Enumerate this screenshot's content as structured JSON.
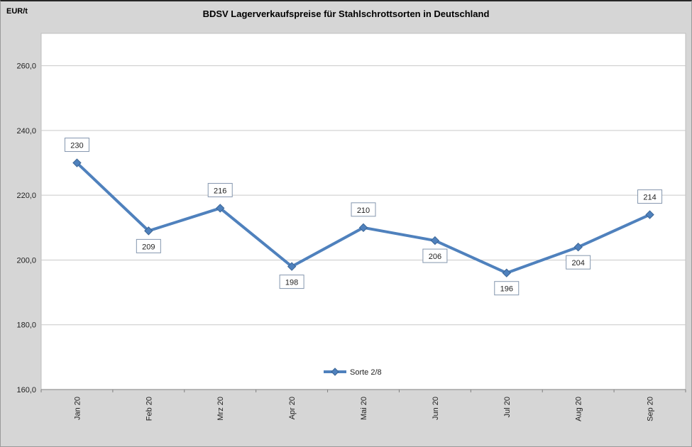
{
  "chart_data": {
    "type": "line",
    "title": "BDSV Lagerverkaufspreise für Stahlschrottsorten in Deutschland",
    "ylabel": "EUR/t",
    "xlabel": "",
    "categories": [
      "Jan 20",
      "Feb 20",
      "Mrz 20",
      "Apr 20",
      "Mai 20",
      "Jun 20",
      "Jul 20",
      "Aug 20",
      "Sep 20"
    ],
    "series": [
      {
        "name": "Sorte 2/8",
        "values": [
          230,
          209,
          216,
          198,
          210,
          206,
          196,
          204,
          214
        ]
      }
    ],
    "data_labels": [
      "230",
      "209",
      "216",
      "198",
      "210",
      "206",
      "196",
      "204",
      "214"
    ],
    "label_positions": [
      "above",
      "below",
      "above",
      "below",
      "above",
      "below",
      "below",
      "below",
      "above"
    ],
    "ylim": [
      160,
      270
    ],
    "yticks": [
      160,
      180,
      200,
      220,
      240,
      260
    ],
    "ytick_labels": [
      "160,0",
      "180,0",
      "200,0",
      "220,0",
      "240,0",
      "260,0"
    ],
    "grid": true,
    "legend": {
      "label": "Sorte 2/8",
      "position": "bottom-center-inside"
    },
    "colors": {
      "line": "#4F81BD",
      "marker_stroke": "#3A6494",
      "chart_background": "#D6D6D6",
      "plot_background": "#FFFFFF",
      "plot_border": "#BFBFBF",
      "gridline": "#C9C9C9",
      "axis": "#808080",
      "label_box_border": "#8496AE",
      "text": "#1F1F1F"
    }
  }
}
